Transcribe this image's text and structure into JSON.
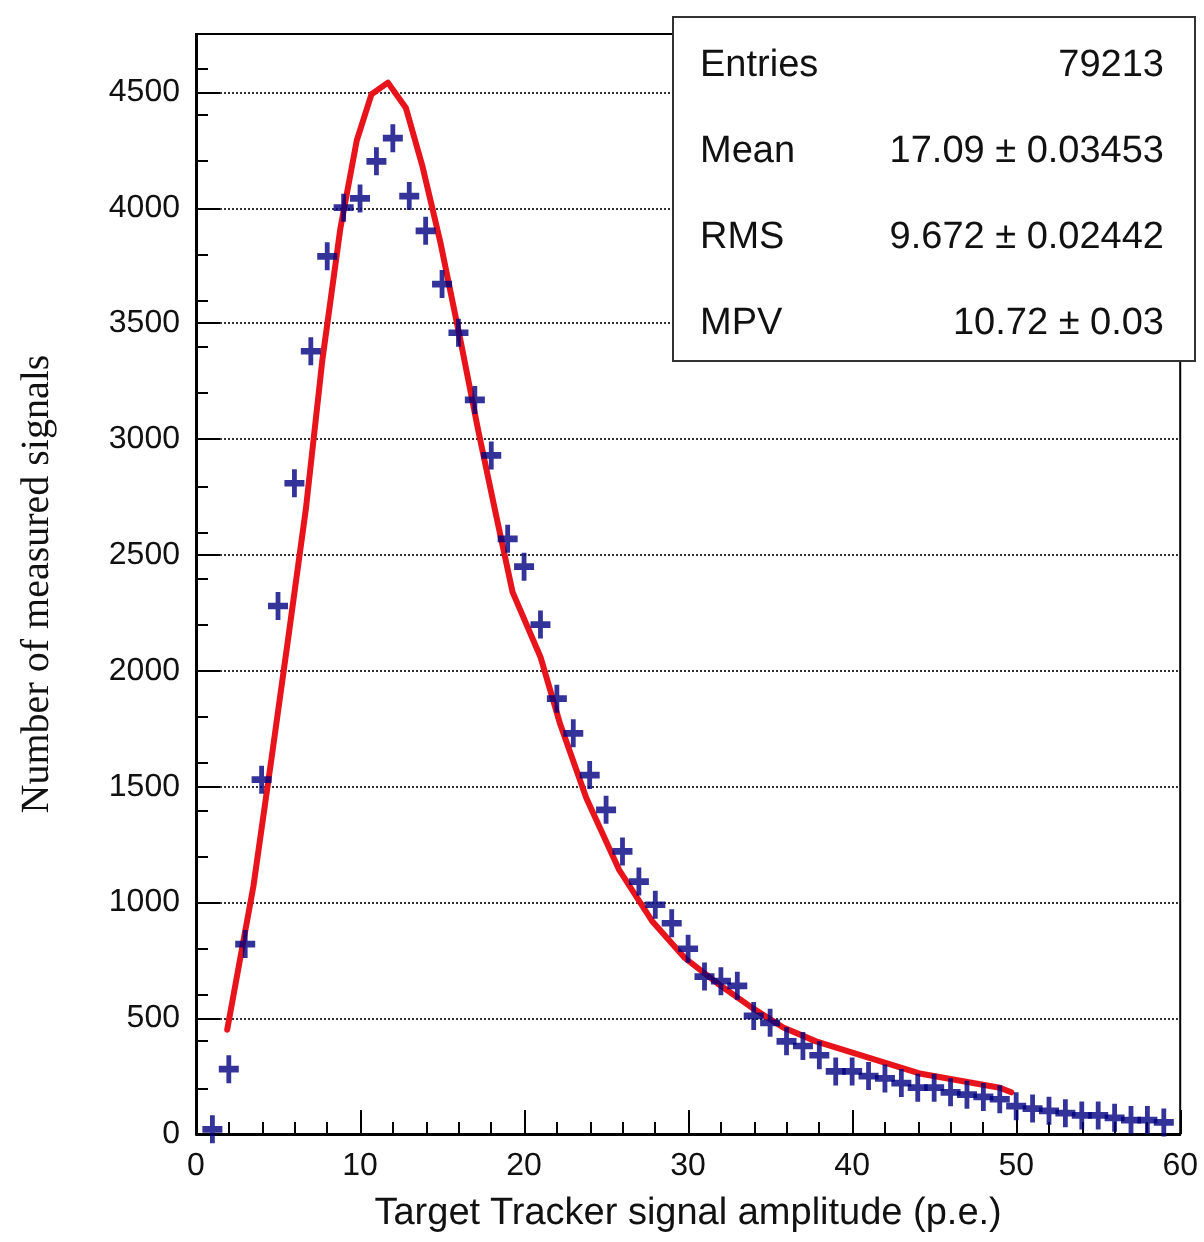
{
  "chart_data": {
    "type": "scatter",
    "xlabel": "Target Tracker signal amplitude (p.e.)",
    "ylabel": "Number of measured signals",
    "xlim": [
      0,
      60
    ],
    "xticks": [
      0,
      10,
      20,
      30,
      40,
      50,
      60
    ],
    "ylim": [
      0,
      4750
    ],
    "yticks": [
      0,
      500,
      1000,
      1500,
      2000,
      2500,
      3000,
      3500,
      4000,
      4500
    ],
    "grid": "y",
    "annotations": [
      "Entries 79213",
      "Mean 17.09 ± 0.03453",
      "RMS 9.672 ± 0.02442",
      "MPV 10.72 ± 0.03"
    ],
    "series": [
      {
        "marker": "cross",
        "color": "#000080",
        "x": [
          1,
          2,
          3,
          4,
          5,
          6,
          7,
          8,
          9,
          10,
          11,
          12,
          13,
          14,
          15,
          16,
          17,
          18,
          19,
          20,
          21,
          22,
          23,
          24,
          25,
          26,
          27,
          28,
          29,
          30,
          31,
          32,
          33,
          34,
          35,
          36,
          37,
          38,
          39,
          40,
          41,
          42,
          43,
          44,
          45,
          46,
          47,
          48,
          49,
          50,
          51,
          52,
          53,
          54,
          55,
          56,
          57,
          58,
          59
        ],
        "values": [
          20,
          280,
          820,
          1530,
          2280,
          2810,
          3380,
          3790,
          4000,
          4040,
          4200,
          4300,
          4050,
          3900,
          3670,
          3460,
          3170,
          2930,
          2570,
          2450,
          2200,
          1880,
          1730,
          1550,
          1400,
          1220,
          1090,
          990,
          910,
          800,
          680,
          660,
          640,
          510,
          480,
          400,
          380,
          340,
          270,
          270,
          250,
          240,
          220,
          200,
          200,
          180,
          170,
          160,
          150,
          120,
          110,
          100,
          90,
          80,
          80,
          70,
          60,
          60,
          50
        ]
      },
      {
        "type": "line",
        "marker": "none",
        "line_style": "solid",
        "color": "#e8141b",
        "x": [
          1.9,
          3.5,
          4.6,
          5.6,
          6.7,
          7.7,
          8.8,
          9.8,
          10.7,
          11.7,
          12.8,
          13.8,
          14.9,
          16.2,
          17.2,
          18.3,
          19.3,
          21,
          22.2,
          23.8,
          25.8,
          27.8,
          29.8,
          31.8,
          33.8,
          35.8,
          37.8,
          41,
          44.2,
          46.6,
          49,
          49.7
        ],
        "values": [
          450,
          1070,
          1620,
          2130,
          2700,
          3340,
          3910,
          4290,
          4490,
          4540,
          4430,
          4180,
          3850,
          3400,
          3040,
          2670,
          2340,
          2060,
          1770,
          1450,
          1140,
          920,
          760,
          650,
          550,
          460,
          400,
          330,
          260,
          230,
          200,
          180
        ]
      }
    ]
  }
}
